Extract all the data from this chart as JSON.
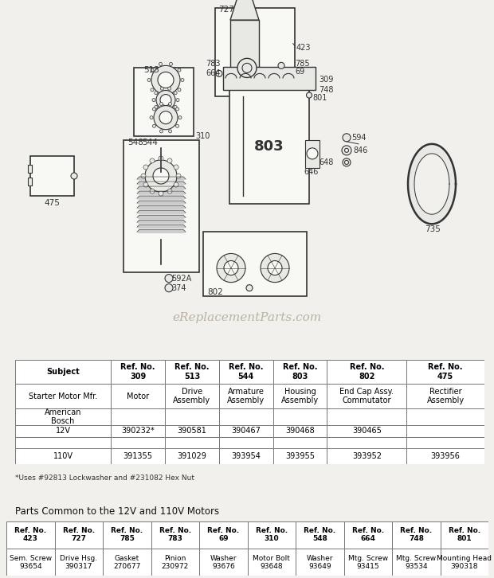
{
  "bg_color": "#f2f0ec",
  "watermark": "eReplacementParts.com",
  "footnote": "*Uses #92813 Lockwasher and #231082 Hex Nut",
  "parts_common_title": "Parts Common to the 12V and 110V Motors",
  "table1_headers": [
    "Subject",
    "Ref. No.\n309",
    "Ref. No.\n513",
    "Ref. No.\n544",
    "Ref. No.\n803",
    "Ref. No.\n802",
    "Ref. No.\n475"
  ],
  "table1_rows": [
    [
      "Starter Motor Mfr.",
      "Motor",
      "Drive\nAssembly",
      "Armature\nAssembly",
      "Housing\nAssembly",
      "End Cap Assy.\nCommutator",
      "Rectifier\nAssembly"
    ],
    [
      "American\nBosch",
      "",
      "",
      "",
      "",
      "",
      ""
    ],
    [
      "12V",
      "390232*",
      "390581",
      "390467",
      "390468",
      "390465",
      ""
    ],
    [
      "",
      "",
      "",
      "",
      "",
      "",
      ""
    ],
    [
      "110V",
      "391355",
      "391029",
      "393954",
      "393955",
      "393952",
      "393956"
    ]
  ],
  "table2_headers": [
    "Ref. No.\n423",
    "Ref. No.\n727",
    "Ref. No.\n785",
    "Ref. No.\n783",
    "Ref. No.\n69",
    "Ref. No.\n310",
    "Ref. No.\n548",
    "Ref. No.\n664",
    "Ref. No.\n748",
    "Ref. No.\n801"
  ],
  "table2_row": [
    "Sem. Screw\n93654",
    "Drive Hsg.\n390317",
    "Gasket\n270677",
    "Pinion\n230972",
    "Washer\n93676",
    "Motor Bolt\n93648",
    "Washer\n93649",
    "Mtg. Screw\n93415",
    "Mtg. Screw\n93534",
    "Mounting Head\n390318"
  ]
}
